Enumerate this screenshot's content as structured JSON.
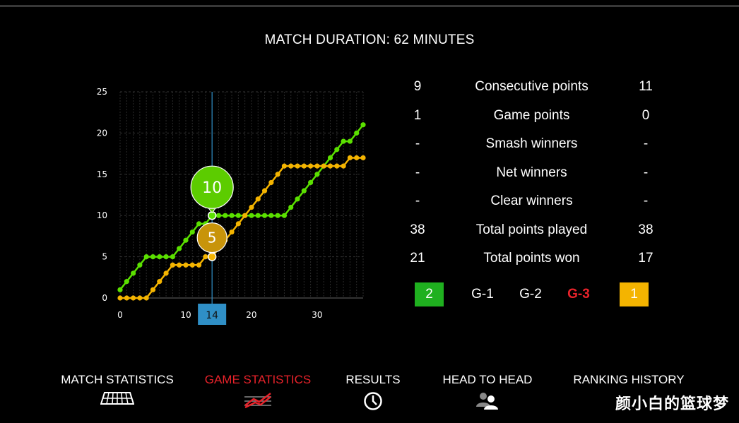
{
  "header": {
    "duration": "MATCH DURATION: 62 MINUTES"
  },
  "chart_data": {
    "type": "line",
    "x": [
      0,
      1,
      2,
      3,
      4,
      5,
      6,
      7,
      8,
      9,
      10,
      11,
      12,
      13,
      14,
      15,
      16,
      17,
      18,
      19,
      20,
      21,
      22,
      23,
      24,
      25,
      26,
      27,
      28,
      29,
      30,
      31,
      32,
      33,
      34,
      35,
      36,
      37
    ],
    "series": [
      {
        "color": "#5be000",
        "values": [
          1,
          2,
          3,
          4,
          5,
          5,
          5,
          5,
          5,
          6,
          7,
          8,
          9,
          9,
          10,
          10,
          10,
          10,
          10,
          10,
          10,
          10,
          10,
          10,
          10,
          10,
          11,
          12,
          13,
          14,
          15,
          16,
          17,
          18,
          19,
          19,
          20,
          21
        ]
      },
      {
        "color": "#f4b400",
        "values": [
          0,
          0,
          0,
          0,
          0,
          1,
          2,
          3,
          4,
          4,
          4,
          4,
          4,
          5,
          5,
          6,
          7,
          8,
          9,
          10,
          11,
          12,
          13,
          14,
          15,
          16,
          16,
          16,
          16,
          16,
          16,
          16,
          16,
          16,
          16,
          17,
          17,
          17
        ]
      }
    ],
    "xlim": [
      0,
      37
    ],
    "ylim": [
      0,
      25
    ],
    "xticks": [
      0,
      10,
      20,
      30
    ],
    "yticks": [
      0,
      5,
      10,
      15,
      20,
      25
    ],
    "grid": true,
    "marker_x": 14,
    "marker_label": "14",
    "tooltips": [
      {
        "series": 0,
        "label": "10",
        "color": "#5ccc00"
      },
      {
        "series": 1,
        "label": "5",
        "color": "#c8940a"
      }
    ]
  },
  "stats": [
    {
      "left": "9",
      "label": "Consecutive points",
      "right": "11"
    },
    {
      "left": "1",
      "label": "Game points",
      "right": "0"
    },
    {
      "left": "-",
      "label": "Smash winners",
      "right": "-"
    },
    {
      "left": "-",
      "label": "Net winners",
      "right": "-"
    },
    {
      "left": "-",
      "label": "Clear winners",
      "right": "-"
    },
    {
      "left": "38",
      "label": "Total points played",
      "right": "38"
    },
    {
      "left": "21",
      "label": "Total points won",
      "right": "17"
    }
  ],
  "games": {
    "left_score": "2",
    "g1": "G-1",
    "g2": "G-2",
    "g3": "G-3",
    "right_score": "1",
    "left_color": "#1fb01f",
    "right_color": "#f4b400",
    "active_color": "#e8222a"
  },
  "nav": {
    "match_statistics": "MATCH STATISTICS",
    "game_statistics": "GAME STATISTICS",
    "results": "RESULTS",
    "head_to_head": "HEAD TO HEAD",
    "ranking_history": "RANKING HISTORY",
    "icons": [
      "court-icon",
      "chart-lines-icon",
      "clock-icon",
      "users-icon"
    ]
  },
  "watermark": "颜小白的篮球梦"
}
